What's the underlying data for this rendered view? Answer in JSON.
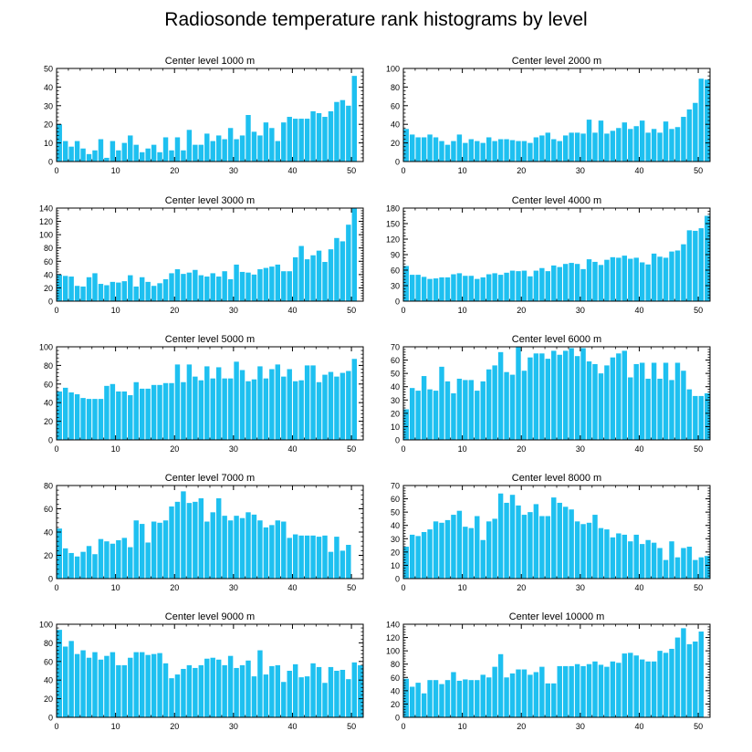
{
  "title": "Radiosonde temperature rank histograms by level",
  "colors": {
    "bar": "#1ec0f0",
    "axis": "#000000",
    "background": "#ffffff"
  },
  "chart_data": [
    {
      "type": "bar",
      "title": "Center level 1000 m",
      "x": [
        0,
        1,
        2,
        3,
        4,
        5,
        6,
        7,
        8,
        9,
        10,
        11,
        12,
        13,
        14,
        15,
        16,
        17,
        18,
        19,
        20,
        21,
        22,
        23,
        24,
        25,
        26,
        27,
        28,
        29,
        30,
        31,
        32,
        33,
        34,
        35,
        36,
        37,
        38,
        39,
        40,
        41,
        42,
        43,
        44,
        45,
        46,
        47,
        48,
        49,
        50,
        51
      ],
      "values": [
        20,
        11,
        8,
        11,
        7,
        4,
        6,
        12,
        2,
        11,
        6,
        10,
        14,
        9,
        5,
        7,
        9,
        5,
        13,
        6,
        13,
        6,
        17,
        9,
        9,
        15,
        11,
        14,
        12,
        18,
        12,
        14,
        25,
        16,
        14,
        21,
        18,
        11,
        21,
        24,
        23,
        23,
        23,
        27,
        26,
        24,
        27,
        32,
        33,
        30,
        46,
        0
      ],
      "xlim": [
        0,
        52
      ],
      "ylim": [
        0,
        50
      ],
      "yticks": [
        0,
        10,
        20,
        30,
        40,
        50
      ],
      "xticks": [
        0,
        10,
        20,
        30,
        40,
        50
      ],
      "ytick_labels": [
        "0",
        "10",
        "20",
        "30",
        "40",
        "50"
      ],
      "xtick_labels": [
        "0",
        "10",
        "20",
        "30",
        "40",
        "50"
      ]
    },
    {
      "type": "bar",
      "title": "Center level 2000 m",
      "x": [
        0,
        1,
        2,
        3,
        4,
        5,
        6,
        7,
        8,
        9,
        10,
        11,
        12,
        13,
        14,
        15,
        16,
        17,
        18,
        19,
        20,
        21,
        22,
        23,
        24,
        25,
        26,
        27,
        28,
        29,
        30,
        31,
        32,
        33,
        34,
        35,
        36,
        37,
        38,
        39,
        40,
        41,
        42,
        43,
        44,
        45,
        46,
        47,
        48,
        49,
        50,
        51
      ],
      "values": [
        35,
        29,
        26,
        26,
        29,
        26,
        22,
        18,
        22,
        29,
        20,
        24,
        22,
        20,
        26,
        22,
        24,
        24,
        23,
        22,
        22,
        20,
        26,
        28,
        31,
        24,
        22,
        28,
        31,
        31,
        30,
        45,
        31,
        44,
        30,
        33,
        36,
        42,
        35,
        38,
        44,
        31,
        35,
        31,
        43,
        35,
        37,
        48,
        56,
        63,
        89,
        88
      ],
      "xlim": [
        0,
        52
      ],
      "ylim": [
        0,
        100
      ],
      "yticks": [
        0,
        20,
        40,
        60,
        80,
        100
      ],
      "xticks": [
        0,
        10,
        20,
        30,
        40,
        50
      ],
      "ytick_labels": [
        "0",
        "20",
        "40",
        "60",
        "80",
        "100"
      ],
      "xtick_labels": [
        "0",
        "10",
        "20",
        "30",
        "40",
        "50"
      ]
    },
    {
      "type": "bar",
      "title": "Center level 3000 m",
      "x": [
        0,
        1,
        2,
        3,
        4,
        5,
        6,
        7,
        8,
        9,
        10,
        11,
        12,
        13,
        14,
        15,
        16,
        17,
        18,
        19,
        20,
        21,
        22,
        23,
        24,
        25,
        26,
        27,
        28,
        29,
        30,
        31,
        32,
        33,
        34,
        35,
        36,
        37,
        38,
        39,
        40,
        41,
        42,
        43,
        44,
        45,
        46,
        47,
        48,
        49,
        50,
        51
      ],
      "values": [
        40,
        38,
        37,
        23,
        22,
        36,
        42,
        26,
        24,
        29,
        28,
        30,
        39,
        22,
        36,
        29,
        23,
        27,
        33,
        42,
        48,
        41,
        43,
        47,
        39,
        37,
        42,
        37,
        45,
        33,
        55,
        44,
        43,
        40,
        48,
        50,
        52,
        55,
        45,
        45,
        66,
        83,
        63,
        69,
        76,
        59,
        78,
        95,
        90,
        115,
        140,
        0
      ],
      "xlim": [
        0,
        52
      ],
      "ylim": [
        0,
        140
      ],
      "yticks": [
        0,
        20,
        40,
        60,
        80,
        100,
        120,
        140
      ],
      "xticks": [
        0,
        10,
        20,
        30,
        40,
        50
      ],
      "ytick_labels": [
        "0",
        "20",
        "40",
        "60",
        "80",
        "100",
        "120",
        "140"
      ],
      "xtick_labels": [
        "0",
        "10",
        "20",
        "30",
        "40",
        "50"
      ]
    },
    {
      "type": "bar",
      "title": "Center level 4000 m",
      "x": [
        0,
        1,
        2,
        3,
        4,
        5,
        6,
        7,
        8,
        9,
        10,
        11,
        12,
        13,
        14,
        15,
        16,
        17,
        18,
        19,
        20,
        21,
        22,
        23,
        24,
        25,
        26,
        27,
        28,
        29,
        30,
        31,
        32,
        33,
        34,
        35,
        36,
        37,
        38,
        39,
        40,
        41,
        42,
        43,
        44,
        45,
        46,
        47,
        48,
        49,
        50,
        51
      ],
      "values": [
        68,
        51,
        51,
        47,
        43,
        44,
        46,
        46,
        52,
        54,
        49,
        49,
        43,
        46,
        52,
        54,
        51,
        55,
        59,
        58,
        59,
        48,
        59,
        64,
        58,
        69,
        66,
        72,
        74,
        72,
        62,
        81,
        76,
        70,
        80,
        85,
        84,
        88,
        82,
        84,
        75,
        71,
        92,
        86,
        84,
        96,
        98,
        110,
        137,
        136,
        141,
        165
      ],
      "xlim": [
        0,
        52
      ],
      "ylim": [
        0,
        180
      ],
      "yticks": [
        0,
        30,
        60,
        90,
        120,
        150,
        180
      ],
      "xticks": [
        0,
        10,
        20,
        30,
        40,
        50
      ],
      "ytick_labels": [
        "0",
        "30",
        "60",
        "90",
        "120",
        "150",
        "180"
      ],
      "xtick_labels": [
        "0",
        "10",
        "20",
        "30",
        "40",
        "50"
      ]
    },
    {
      "type": "bar",
      "title": "Center level 5000 m",
      "x": [
        0,
        1,
        2,
        3,
        4,
        5,
        6,
        7,
        8,
        9,
        10,
        11,
        12,
        13,
        14,
        15,
        16,
        17,
        18,
        19,
        20,
        21,
        22,
        23,
        24,
        25,
        26,
        27,
        28,
        29,
        30,
        31,
        32,
        33,
        34,
        35,
        36,
        37,
        38,
        39,
        40,
        41,
        42,
        43,
        44,
        45,
        46,
        47,
        48,
        49,
        50,
        51
      ],
      "values": [
        52,
        56,
        51,
        49,
        45,
        44,
        44,
        44,
        58,
        60,
        52,
        52,
        48,
        62,
        55,
        55,
        59,
        59,
        61,
        61,
        81,
        62,
        81,
        68,
        64,
        79,
        66,
        78,
        66,
        66,
        84,
        75,
        63,
        65,
        79,
        66,
        76,
        81,
        68,
        76,
        63,
        64,
        80,
        80,
        62,
        70,
        73,
        68,
        72,
        74,
        87,
        0
      ],
      "xlim": [
        0,
        52
      ],
      "ylim": [
        0,
        100
      ],
      "yticks": [
        0,
        20,
        40,
        60,
        80,
        100
      ],
      "xticks": [
        0,
        10,
        20,
        30,
        40,
        50
      ],
      "ytick_labels": [
        "0",
        "20",
        "40",
        "60",
        "80",
        "100"
      ],
      "xtick_labels": [
        "0",
        "10",
        "20",
        "30",
        "40",
        "50"
      ]
    },
    {
      "type": "bar",
      "title": "Center level 6000 m",
      "x": [
        0,
        1,
        2,
        3,
        4,
        5,
        6,
        7,
        8,
        9,
        10,
        11,
        12,
        13,
        14,
        15,
        16,
        17,
        18,
        19,
        20,
        21,
        22,
        23,
        24,
        25,
        26,
        27,
        28,
        29,
        30,
        31,
        32,
        33,
        34,
        35,
        36,
        37,
        38,
        39,
        40,
        41,
        42,
        43,
        44,
        45,
        46,
        47,
        48,
        49,
        50,
        51
      ],
      "values": [
        23,
        39,
        37,
        48,
        38,
        37,
        55,
        44,
        35,
        46,
        45,
        45,
        37,
        44,
        53,
        56,
        66,
        51,
        49,
        70,
        52,
        62,
        65,
        65,
        61,
        67,
        64,
        67,
        69,
        63,
        69,
        59,
        57,
        50,
        56,
        62,
        65,
        67,
        47,
        57,
        58,
        46,
        58,
        46,
        58,
        45,
        58,
        52,
        38,
        33,
        33,
        35
      ],
      "xlim": [
        0,
        52
      ],
      "ylim": [
        0,
        70
      ],
      "yticks": [
        0,
        10,
        20,
        30,
        40,
        50,
        60,
        70
      ],
      "xticks": [
        0,
        10,
        20,
        30,
        40,
        50
      ],
      "ytick_labels": [
        "0",
        "10",
        "20",
        "30",
        "40",
        "50",
        "60",
        "70"
      ],
      "xtick_labels": [
        "0",
        "10",
        "20",
        "30",
        "40",
        "50"
      ]
    },
    {
      "type": "bar",
      "title": "Center level 7000 m",
      "x": [
        0,
        1,
        2,
        3,
        4,
        5,
        6,
        7,
        8,
        9,
        10,
        11,
        12,
        13,
        14,
        15,
        16,
        17,
        18,
        19,
        20,
        21,
        22,
        23,
        24,
        25,
        26,
        27,
        28,
        29,
        30,
        31,
        32,
        33,
        34,
        35,
        36,
        37,
        38,
        39,
        40,
        41,
        42,
        43,
        44,
        45,
        46,
        47,
        48,
        49,
        50,
        51
      ],
      "values": [
        43,
        26,
        22,
        19,
        23,
        28,
        21,
        34,
        32,
        30,
        33,
        35,
        27,
        50,
        47,
        31,
        49,
        48,
        50,
        62,
        66,
        75,
        65,
        66,
        69,
        49,
        57,
        69,
        54,
        50,
        54,
        52,
        57,
        55,
        50,
        44,
        46,
        50,
        49,
        35,
        38,
        37,
        37,
        37,
        36,
        37,
        23,
        36,
        24,
        29,
        0,
        0
      ],
      "xlim": [
        0,
        52
      ],
      "ylim": [
        0,
        80
      ],
      "yticks": [
        0,
        20,
        40,
        60,
        80
      ],
      "xticks": [
        0,
        10,
        20,
        30,
        40,
        50
      ],
      "ytick_labels": [
        "0",
        "20",
        "40",
        "60",
        "80"
      ],
      "xtick_labels": [
        "0",
        "10",
        "20",
        "30",
        "40",
        "50"
      ]
    },
    {
      "type": "bar",
      "title": "Center level 8000 m",
      "x": [
        0,
        1,
        2,
        3,
        4,
        5,
        6,
        7,
        8,
        9,
        10,
        11,
        12,
        13,
        14,
        15,
        16,
        17,
        18,
        19,
        20,
        21,
        22,
        23,
        24,
        25,
        26,
        27,
        28,
        29,
        30,
        31,
        32,
        33,
        34,
        35,
        36,
        37,
        38,
        39,
        40,
        41,
        42,
        43,
        44,
        45,
        46,
        47,
        48,
        49,
        50,
        51
      ],
      "values": [
        24,
        33,
        32,
        35,
        37,
        43,
        42,
        44,
        48,
        51,
        39,
        38,
        47,
        29,
        43,
        45,
        64,
        57,
        63,
        55,
        48,
        50,
        56,
        47,
        47,
        61,
        57,
        54,
        52,
        43,
        41,
        42,
        48,
        38,
        37,
        31,
        34,
        33,
        28,
        33,
        26,
        29,
        27,
        23,
        14,
        28,
        16,
        23,
        24,
        14,
        16,
        17
      ],
      "xlim": [
        0,
        52
      ],
      "ylim": [
        0,
        70
      ],
      "yticks": [
        0,
        10,
        20,
        30,
        40,
        50,
        60,
        70
      ],
      "xticks": [
        0,
        10,
        20,
        30,
        40,
        50
      ],
      "ytick_labels": [
        "0",
        "10",
        "20",
        "30",
        "40",
        "50",
        "60",
        "70"
      ],
      "xtick_labels": [
        "0",
        "10",
        "20",
        "30",
        "40",
        "50"
      ]
    },
    {
      "type": "bar",
      "title": "Center level 9000 m",
      "x": [
        0,
        1,
        2,
        3,
        4,
        5,
        6,
        7,
        8,
        9,
        10,
        11,
        12,
        13,
        14,
        15,
        16,
        17,
        18,
        19,
        20,
        21,
        22,
        23,
        24,
        25,
        26,
        27,
        28,
        29,
        30,
        31,
        32,
        33,
        34,
        35,
        36,
        37,
        38,
        39,
        40,
        41,
        42,
        43,
        44,
        45,
        46,
        47,
        48,
        49,
        50,
        51
      ],
      "values": [
        94,
        76,
        82,
        68,
        72,
        64,
        70,
        62,
        66,
        70,
        56,
        56,
        64,
        70,
        70,
        67,
        68,
        69,
        58,
        42,
        46,
        52,
        56,
        53,
        56,
        63,
        64,
        62,
        56,
        66,
        53,
        56,
        61,
        44,
        72,
        46,
        55,
        56,
        38,
        50,
        57,
        43,
        44,
        58,
        54,
        37,
        54,
        50,
        51,
        41,
        59,
        56
      ],
      "xlim": [
        0,
        52
      ],
      "ylim": [
        0,
        100
      ],
      "yticks": [
        0,
        20,
        40,
        60,
        80,
        100
      ],
      "xticks": [
        0,
        10,
        20,
        30,
        40,
        50
      ],
      "ytick_labels": [
        "0",
        "20",
        "40",
        "60",
        "80",
        "100"
      ],
      "xtick_labels": [
        "0",
        "10",
        "20",
        "30",
        "40",
        "50"
      ]
    },
    {
      "type": "bar",
      "title": "Center level 10000 m",
      "x": [
        0,
        1,
        2,
        3,
        4,
        5,
        6,
        7,
        8,
        9,
        10,
        11,
        12,
        13,
        14,
        15,
        16,
        17,
        18,
        19,
        20,
        21,
        22,
        23,
        24,
        25,
        26,
        27,
        28,
        29,
        30,
        31,
        32,
        33,
        34,
        35,
        36,
        37,
        38,
        39,
        40,
        41,
        42,
        43,
        44,
        45,
        46,
        47,
        48,
        49,
        50,
        51
      ],
      "values": [
        58,
        46,
        52,
        36,
        56,
        56,
        50,
        56,
        68,
        55,
        57,
        56,
        56,
        64,
        60,
        76,
        95,
        60,
        66,
        72,
        72,
        64,
        68,
        76,
        51,
        51,
        77,
        77,
        77,
        80,
        77,
        80,
        84,
        79,
        76,
        84,
        82,
        96,
        97,
        93,
        87,
        84,
        84,
        100,
        97,
        103,
        120,
        134,
        110,
        114,
        129,
        0
      ],
      "xlim": [
        0,
        52
      ],
      "ylim": [
        0,
        140
      ],
      "yticks": [
        0,
        20,
        40,
        60,
        80,
        100,
        120,
        140
      ],
      "xticks": [
        0,
        10,
        20,
        30,
        40,
        50
      ],
      "ytick_labels": [
        "0",
        "20",
        "40",
        "60",
        "80",
        "100",
        "120",
        "140"
      ],
      "xtick_labels": [
        "0",
        "10",
        "20",
        "30",
        "40",
        "50"
      ]
    }
  ]
}
